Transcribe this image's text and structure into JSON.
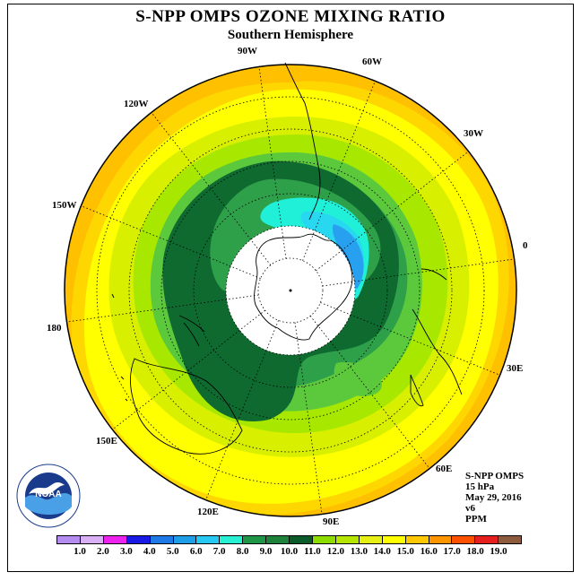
{
  "title": "S-NPP OMPS OZONE MIXING RATIO",
  "subtitle": "Southern Hemisphere",
  "longitude_labels": {
    "lon_90w": "90W",
    "lon_60w": "60W",
    "lon_30w": "30W",
    "lon_0": "0",
    "lon_30e": "30E",
    "lon_60e": "60E",
    "lon_90e": "90E",
    "lon_120e": "120E",
    "lon_150e": "150E",
    "lon_180": "180",
    "lon_150w": "150W",
    "lon_120w": "120W"
  },
  "info": {
    "instrument": "S-NPP OMPS",
    "level": "15 hPa",
    "date": "May 29, 2016",
    "version": "v6",
    "units": "PPM"
  },
  "colorbar": {
    "ticks": [
      "1.0",
      "2.0",
      "3.0",
      "4.0",
      "5.0",
      "6.0",
      "7.0",
      "8.0",
      "9.0",
      "10.0",
      "11.0",
      "12.0",
      "13.0",
      "14.0",
      "15.0",
      "16.0",
      "17.0",
      "18.0",
      "19.0"
    ],
    "colors": [
      "#b58cf0",
      "#d9b0f5",
      "#ee22ee",
      "#1a1ae6",
      "#1e78e6",
      "#1e9ee6",
      "#28c8f5",
      "#28f0d2",
      "#1e9646",
      "#1e823c",
      "#0a5a2a",
      "#8cdc00",
      "#b4e600",
      "#e6f014",
      "#ffff00",
      "#ffc800",
      "#ff9600",
      "#ff5000",
      "#e61e1e",
      "#8c5a3c"
    ]
  },
  "colors": {
    "c_orange": "#ffc000",
    "c_lightorange": "#ffd700",
    "c_yellow": "#ffff00",
    "c_yellowgreen": "#d8f000",
    "c_lightgreen": "#a8e800",
    "c_green": "#5cc83c",
    "c_midgreen": "#2ea04a",
    "c_darkgreen": "#0f6a30",
    "c_teal": "#20f0d8",
    "c_cyan": "#28d8f0",
    "c_blue": "#28a0f0"
  },
  "logo_text": "NOAA"
}
